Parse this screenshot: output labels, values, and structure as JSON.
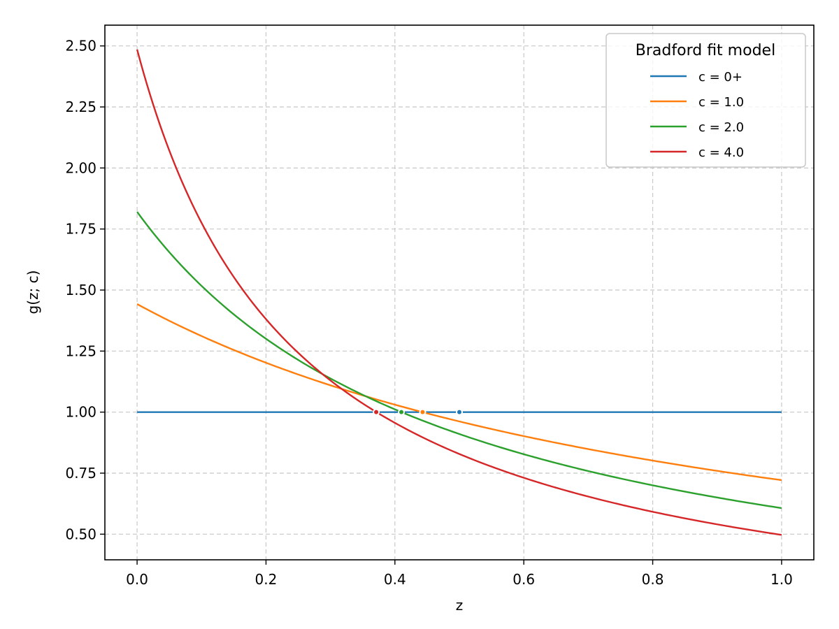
{
  "chart_data": {
    "type": "line",
    "title": "",
    "xlabel": "z",
    "ylabel": "g(z; c)",
    "xlim": [
      -0.05,
      1.05
    ],
    "ylim": [
      0.395,
      2.585
    ],
    "xticks": [
      0.0,
      0.2,
      0.4,
      0.6,
      0.8,
      1.0
    ],
    "xtick_labels": [
      "0.0",
      "0.2",
      "0.4",
      "0.6",
      "0.8",
      "1.0"
    ],
    "yticks": [
      0.5,
      0.75,
      1.0,
      1.25,
      1.5,
      1.75,
      2.0,
      2.25,
      2.5
    ],
    "ytick_labels": [
      "0.50",
      "0.75",
      "1.00",
      "1.25",
      "1.50",
      "1.75",
      "2.00",
      "2.25",
      "2.50"
    ],
    "grid": true,
    "legend": {
      "title": "Bradford fit model",
      "position": "upper right"
    },
    "x": [
      0.0,
      0.1,
      0.2,
      0.3,
      0.4,
      0.5,
      0.6,
      0.7,
      0.8,
      0.9,
      1.0
    ],
    "series": [
      {
        "name": "c = 0+",
        "c": 0,
        "color": "#1f77b4",
        "values": [
          1.0,
          1.0,
          1.0,
          1.0,
          1.0,
          1.0,
          1.0,
          1.0,
          1.0,
          1.0,
          1.0
        ],
        "marker": {
          "x": 0.5,
          "y": 1.0
        }
      },
      {
        "name": "c = 1.0",
        "c": 1.0,
        "color": "#ff7f0e",
        "values": [
          1.443,
          1.312,
          1.202,
          1.11,
          1.03,
          0.962,
          0.902,
          0.849,
          0.801,
          0.759,
          0.721
        ],
        "marker": {
          "x": 0.443,
          "y": 1.0
        }
      },
      {
        "name": "c = 2.0",
        "c": 2.0,
        "color": "#2ca02c",
        "values": [
          1.82,
          1.517,
          1.3,
          1.138,
          1.011,
          0.91,
          0.827,
          0.758,
          0.7,
          0.65,
          0.607
        ],
        "marker": {
          "x": 0.41,
          "y": 1.0
        }
      },
      {
        "name": "c = 4.0",
        "c": 4.0,
        "color": "#d62728",
        "values": [
          2.485,
          1.775,
          1.38,
          1.13,
          0.956,
          0.828,
          0.731,
          0.654,
          0.592,
          0.54,
          0.497
        ],
        "marker": {
          "x": 0.371,
          "y": 1.0
        }
      }
    ]
  }
}
